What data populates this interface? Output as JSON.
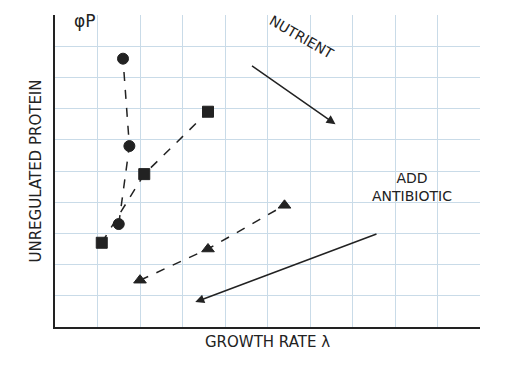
{
  "chart_data": {
    "type": "scatter",
    "x_label": "GROWTH RATE λ",
    "y_label": "UNREGULATED PROTEIN",
    "annotations": [
      "φP",
      "NUTRIENT",
      "ADD ANTIBIOTIC"
    ],
    "xlim": [
      0,
      10
    ],
    "ylim": [
      0,
      10
    ],
    "xticks": [
      0,
      1,
      2,
      3,
      4,
      5,
      6,
      7,
      8,
      9,
      10
    ],
    "yticks": [
      0,
      1,
      2,
      3,
      4,
      5,
      6,
      7,
      8,
      9,
      10
    ],
    "grid": true,
    "tick_labels": false,
    "series": [
      {
        "marker": "circle",
        "color": "#222222",
        "line_style": "dash",
        "x": [
          1.5,
          1.75,
          1.6
        ],
        "values": [
          3.3,
          5.8,
          8.6
        ]
      },
      {
        "marker": "square",
        "color": "#222222",
        "line_style": "dash",
        "x": [
          1.1,
          2.1,
          3.6
        ],
        "values": [
          2.7,
          4.9,
          6.9
        ]
      },
      {
        "marker": "triangle-up",
        "color": "#222222",
        "line_style": "dash",
        "x": [
          2.0,
          3.6,
          5.4
        ],
        "values": [
          1.5,
          2.5,
          3.9
        ]
      }
    ]
  }
}
